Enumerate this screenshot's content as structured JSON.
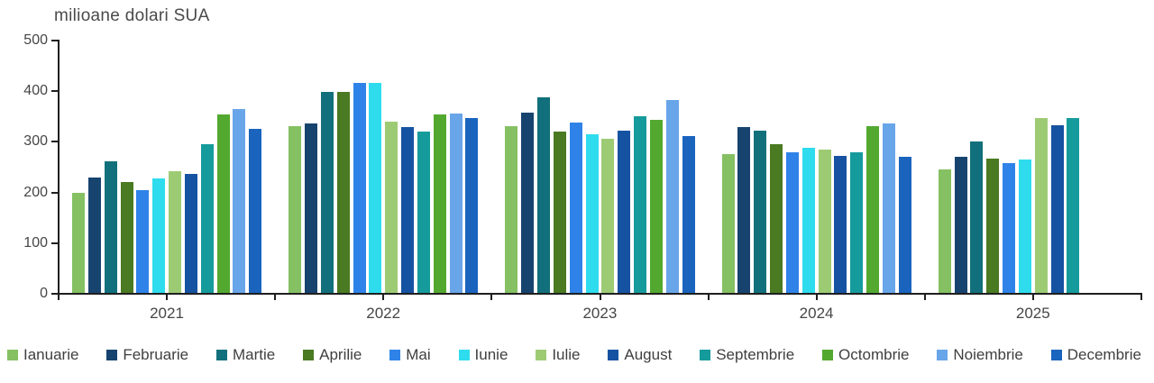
{
  "chart_data": {
    "type": "bar",
    "title": "milioane dolari SUA",
    "categories": [
      "2021",
      "2022",
      "2023",
      "2024",
      "2025"
    ],
    "y_axis": {
      "min": 0,
      "max": 500,
      "step": 100,
      "tick_labels": [
        "0",
        "100",
        "200",
        "300",
        "400",
        "500"
      ]
    },
    "grid": false,
    "legend_position": "bottom",
    "series": [
      {
        "name": "Ianuarie",
        "color": "#85c063",
        "values": [
          198,
          330,
          330,
          274,
          243
        ]
      },
      {
        "name": "Februarie",
        "color": "#17436f",
        "values": [
          227,
          335,
          355,
          327,
          268
        ]
      },
      {
        "name": "Martie",
        "color": "#11707b",
        "values": [
          260,
          396,
          386,
          321,
          299
        ]
      },
      {
        "name": "Aprilie",
        "color": "#4a7a21",
        "values": [
          218,
          396,
          318,
          293,
          265
        ]
      },
      {
        "name": "Mai",
        "color": "#2f83e8",
        "values": [
          202,
          414,
          336,
          277,
          257
        ]
      },
      {
        "name": "Iunie",
        "color": "#2edcee",
        "values": [
          226,
          414,
          313,
          287,
          263
        ]
      },
      {
        "name": "Iulie",
        "color": "#9dcb74",
        "values": [
          241,
          338,
          305,
          283,
          345
        ]
      },
      {
        "name": "August",
        "color": "#1652a2",
        "values": [
          235,
          328,
          320,
          270,
          331
        ]
      },
      {
        "name": "Septembrie",
        "color": "#169b9d",
        "values": [
          294,
          318,
          348,
          278,
          345
        ]
      },
      {
        "name": "Octombrie",
        "color": "#53a92f",
        "values": [
          353,
          352,
          341,
          329,
          null
        ]
      },
      {
        "name": "Noiembrie",
        "color": "#69a5e9",
        "values": [
          363,
          354,
          380,
          334,
          null
        ]
      },
      {
        "name": "Decembrie",
        "color": "#1a64be",
        "values": [
          324,
          345,
          310,
          268,
          null
        ]
      }
    ]
  },
  "colors": {
    "axis": "#1f1f1f",
    "text": "#464646",
    "background": "#ffffff"
  }
}
